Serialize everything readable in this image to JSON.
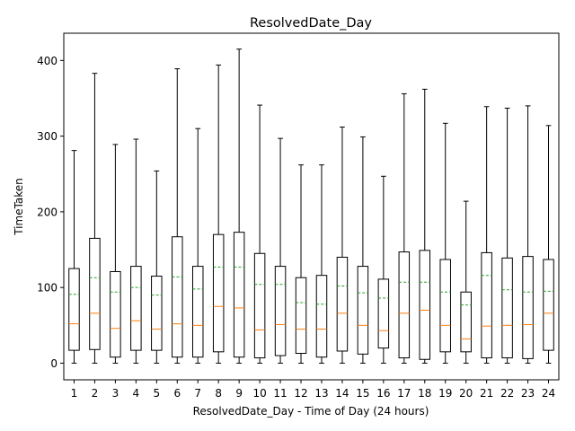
{
  "chart_data": {
    "type": "box",
    "title": "ResolvedDate_Day",
    "xlabel": "ResolvedDate_Day - Time of Day (24 hours)",
    "ylabel": "TimeTaken",
    "ylim": [
      -22,
      436
    ],
    "yticks": [
      0,
      100,
      200,
      300,
      400
    ],
    "grid": false,
    "legend": "none",
    "colors": {
      "box": "#000000",
      "median": "#ff7f0e",
      "mean": "#2ca02c"
    },
    "categories": [
      "1",
      "2",
      "3",
      "4",
      "5",
      "6",
      "7",
      "8",
      "9",
      "10",
      "11",
      "12",
      "13",
      "14",
      "15",
      "16",
      "17",
      "18",
      "19",
      "20",
      "21",
      "22",
      "23",
      "24"
    ],
    "boxes": [
      {
        "label": "1",
        "whislo": 0,
        "q1": 17,
        "med": 52,
        "mean": 91,
        "q3": 125,
        "whishi": 281
      },
      {
        "label": "2",
        "whislo": 0,
        "q1": 18,
        "med": 66,
        "mean": 113,
        "q3": 165,
        "whishi": 383
      },
      {
        "label": "3",
        "whislo": 0,
        "q1": 8,
        "med": 46,
        "mean": 94,
        "q3": 121,
        "whishi": 289
      },
      {
        "label": "4",
        "whislo": 0,
        "q1": 17,
        "med": 56,
        "mean": 100,
        "q3": 128,
        "whishi": 296
      },
      {
        "label": "5",
        "whislo": 0,
        "q1": 17,
        "med": 45,
        "mean": 90,
        "q3": 115,
        "whishi": 254
      },
      {
        "label": "6",
        "whislo": 0,
        "q1": 8,
        "med": 52,
        "mean": 114,
        "q3": 167,
        "whishi": 389
      },
      {
        "label": "7",
        "whislo": 0,
        "q1": 8,
        "med": 50,
        "mean": 98,
        "q3": 128,
        "whishi": 310
      },
      {
        "label": "8",
        "whislo": 0,
        "q1": 15,
        "med": 75,
        "mean": 127,
        "q3": 170,
        "whishi": 394
      },
      {
        "label": "9",
        "whislo": 0,
        "q1": 8,
        "med": 73,
        "mean": 127,
        "q3": 173,
        "whishi": 415
      },
      {
        "label": "10",
        "whislo": 0,
        "q1": 7,
        "med": 44,
        "mean": 104,
        "q3": 145,
        "whishi": 341
      },
      {
        "label": "11",
        "whislo": 0,
        "q1": 10,
        "med": 51,
        "mean": 104,
        "q3": 128,
        "whishi": 297
      },
      {
        "label": "12",
        "whislo": 0,
        "q1": 13,
        "med": 45,
        "mean": 80,
        "q3": 113,
        "whishi": 262
      },
      {
        "label": "13",
        "whislo": 0,
        "q1": 8,
        "med": 45,
        "mean": 78,
        "q3": 116,
        "whishi": 262
      },
      {
        "label": "14",
        "whislo": 0,
        "q1": 16,
        "med": 66,
        "mean": 102,
        "q3": 140,
        "whishi": 312
      },
      {
        "label": "15",
        "whislo": 0,
        "q1": 12,
        "med": 50,
        "mean": 93,
        "q3": 128,
        "whishi": 299
      },
      {
        "label": "16",
        "whislo": 0,
        "q1": 20,
        "med": 43,
        "mean": 86,
        "q3": 111,
        "whishi": 247
      },
      {
        "label": "17",
        "whislo": 0,
        "q1": 7,
        "med": 66,
        "mean": 107,
        "q3": 147,
        "whishi": 356
      },
      {
        "label": "18",
        "whislo": 0,
        "q1": 5,
        "med": 70,
        "mean": 107,
        "q3": 149,
        "whishi": 362
      },
      {
        "label": "19",
        "whislo": 0,
        "q1": 15,
        "med": 50,
        "mean": 94,
        "q3": 137,
        "whishi": 317
      },
      {
        "label": "20",
        "whislo": 0,
        "q1": 15,
        "med": 32,
        "mean": 77,
        "q3": 94,
        "whishi": 214
      },
      {
        "label": "21",
        "whislo": 0,
        "q1": 7,
        "med": 49,
        "mean": 116,
        "q3": 146,
        "whishi": 339
      },
      {
        "label": "22",
        "whislo": 0,
        "q1": 7,
        "med": 50,
        "mean": 97,
        "q3": 139,
        "whishi": 337
      },
      {
        "label": "23",
        "whislo": 0,
        "q1": 6,
        "med": 51,
        "mean": 94,
        "q3": 141,
        "whishi": 340
      },
      {
        "label": "24",
        "whislo": 0,
        "q1": 17,
        "med": 66,
        "mean": 95,
        "q3": 137,
        "whishi": 314
      }
    ]
  }
}
